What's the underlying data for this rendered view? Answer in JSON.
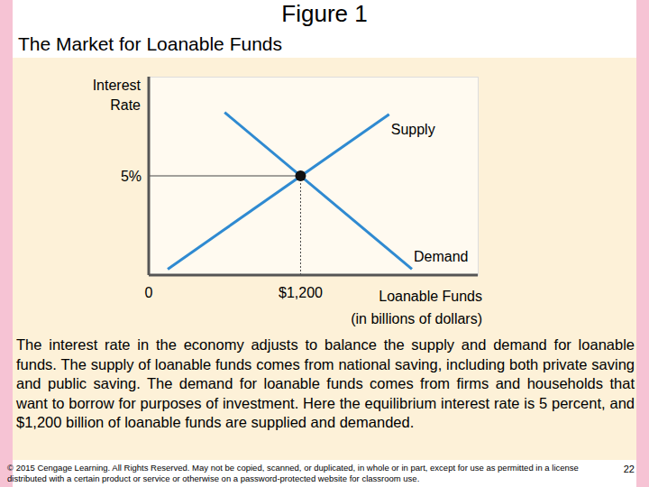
{
  "chart_data": {
    "type": "line",
    "title": "Figure 1",
    "subtitle": "The Market for Loanable Funds",
    "x_label": [
      "Loanable Funds",
      "(in billions of dollars)"
    ],
    "y_label": [
      "Interest",
      "Rate"
    ],
    "series": [
      {
        "name": "Supply",
        "color": "#2f8ad1",
        "x": [
          150,
          1900
        ],
        "values": [
          0.3,
          8.1
        ]
      },
      {
        "name": "Demand",
        "color": "#2f8ad1",
        "x": [
          600,
          2080
        ],
        "values": [
          8.2,
          0.3
        ]
      }
    ],
    "equilibrium": {
      "x": 1200,
      "y": 5
    },
    "xlim": [
      0,
      2600
    ],
    "ylim": [
      0,
      10
    ],
    "xticks": [
      0,
      {
        "value": 1200,
        "label": "$1,200"
      }
    ],
    "yticks": [
      {
        "value": 5,
        "label": "5%"
      }
    ],
    "grid": false
  },
  "caption": "The interest rate in the economy adjusts to balance the supply and demand for loanable funds. The supply of loanable funds comes from national saving, including both private saving and public saving. The demand for loanable funds comes from firms and households that want to borrow for purposes of investment. Here the equilibrium interest rate is 5 percent, and $1,200 billion of loanable funds are supplied and demanded.",
  "footer": "© 2015 Cengage Learning. All Rights Reserved. May not be copied, scanned, or duplicated, in whole or in part, except for use as permitted in a license distributed with a certain product or service or otherwise on a password-protected website for classroom use.",
  "page_number": 22
}
